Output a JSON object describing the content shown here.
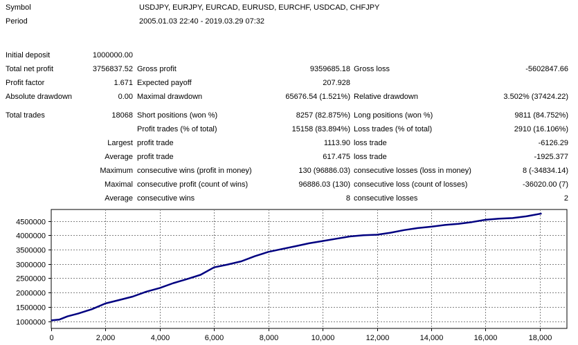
{
  "report": {
    "symbol_label": "Symbol",
    "symbol_value": "USDJPY, EURJPY, EURCAD, EURUSD, EURCHF, USDCAD, CHFJPY",
    "period_label": "Period",
    "period_value": "2005.01.03 22:40 - 2019.03.29 07:32",
    "initial_deposit_label": "Initial deposit",
    "initial_deposit_value": "1000000.00",
    "total_net_profit_label": "Total net profit",
    "total_net_profit_value": "3756837.52",
    "gross_profit_label": "Gross profit",
    "gross_profit_value": "9359685.18",
    "gross_loss_label": "Gross loss",
    "gross_loss_value": "-5602847.66",
    "profit_factor_label": "Profit factor",
    "profit_factor_value": "1.671",
    "expected_payoff_label": "Expected payoff",
    "expected_payoff_value": "207.928",
    "absolute_drawdown_label": "Absolute drawdown",
    "absolute_drawdown_value": "0.00",
    "maximal_drawdown_label": "Maximal drawdown",
    "maximal_drawdown_value": "65676.54 (1.521%)",
    "relative_drawdown_label": "Relative drawdown",
    "relative_drawdown_value": "3.502% (37424.22)",
    "total_trades_label": "Total trades",
    "total_trades_value": "18068",
    "short_positions_label": "Short positions (won %)",
    "short_positions_value": "8257 (82.875%)",
    "long_positions_label": "Long positions (won %)",
    "long_positions_value": "9811 (84.752%)",
    "profit_trades_label": "Profit trades (% of total)",
    "profit_trades_value": "15158 (83.894%)",
    "loss_trades_label": "Loss trades (% of total)",
    "loss_trades_value": "2910 (16.106%)",
    "largest_label": "Largest",
    "largest_profit_label": "profit trade",
    "largest_profit_value": "1113.90",
    "largest_loss_label": "loss trade",
    "largest_loss_value": "-6126.29",
    "average_label": "Average",
    "average_profit_label": "profit trade",
    "average_profit_value": "617.475",
    "average_loss_label": "loss trade",
    "average_loss_value": "-1925.377",
    "maximum_label": "Maximum",
    "max_consec_wins_label": "consecutive wins (profit in money)",
    "max_consec_wins_value": "130 (96886.03)",
    "max_consec_losses_label": "consecutive losses (loss in money)",
    "max_consec_losses_value": "8 (-34834.14)",
    "maximal_label": "Maximal",
    "maximal_consec_profit_label": "consecutive profit (count of wins)",
    "maximal_consec_profit_value": "96886.03 (130)",
    "maximal_consec_loss_label": "consecutive loss (count of losses)",
    "maximal_consec_loss_value": "-36020.00 (7)",
    "average2_label": "Average",
    "avg_consec_wins_label": "consecutive wins",
    "avg_consec_wins_value": "8",
    "avg_consec_losses_label": "consecutive losses",
    "avg_consec_losses_value": "2"
  },
  "chart_data": {
    "type": "line",
    "title": "",
    "xlabel": "",
    "ylabel": "",
    "xlim": [
      0,
      19000
    ],
    "ylim": [
      750000,
      4900000
    ],
    "grid": true,
    "line_color": "#000080",
    "x_ticks": [
      0,
      2000,
      4000,
      6000,
      8000,
      10000,
      12000,
      14000,
      16000,
      18000
    ],
    "x_tick_labels": [
      "0",
      "2,000",
      "4,000",
      "6,000",
      "8,000",
      "10,000",
      "12,000",
      "14,000",
      "16,000",
      "18,000"
    ],
    "y_ticks": [
      1000000,
      1500000,
      2000000,
      2500000,
      3000000,
      3500000,
      4000000,
      4500000
    ],
    "y_tick_labels": [
      "1000000",
      "1500000",
      "2000000",
      "2500000",
      "3000000",
      "3500000",
      "4000000",
      "4500000"
    ],
    "series": [
      {
        "x": [
          0,
          300,
          600,
          1000,
          1500,
          2000,
          2500,
          3000,
          3500,
          4000,
          4500,
          5000,
          5500,
          6000,
          6500,
          7000,
          7500,
          8000,
          8500,
          9000,
          9500,
          10000,
          10500,
          11000,
          11500,
          12000,
          12500,
          13000,
          13500,
          14000,
          14500,
          15000,
          15500,
          16000,
          16500,
          17000,
          17500,
          18068
        ],
        "y": [
          1030000,
          1060000,
          1170000,
          1270000,
          1420000,
          1620000,
          1740000,
          1860000,
          2030000,
          2160000,
          2330000,
          2470000,
          2620000,
          2880000,
          2980000,
          3090000,
          3270000,
          3420000,
          3520000,
          3620000,
          3720000,
          3800000,
          3880000,
          3960000,
          4000000,
          4020000,
          4090000,
          4180000,
          4250000,
          4300000,
          4360000,
          4400000,
          4460000,
          4540000,
          4580000,
          4600000,
          4660000,
          4760000
        ]
      }
    ]
  }
}
